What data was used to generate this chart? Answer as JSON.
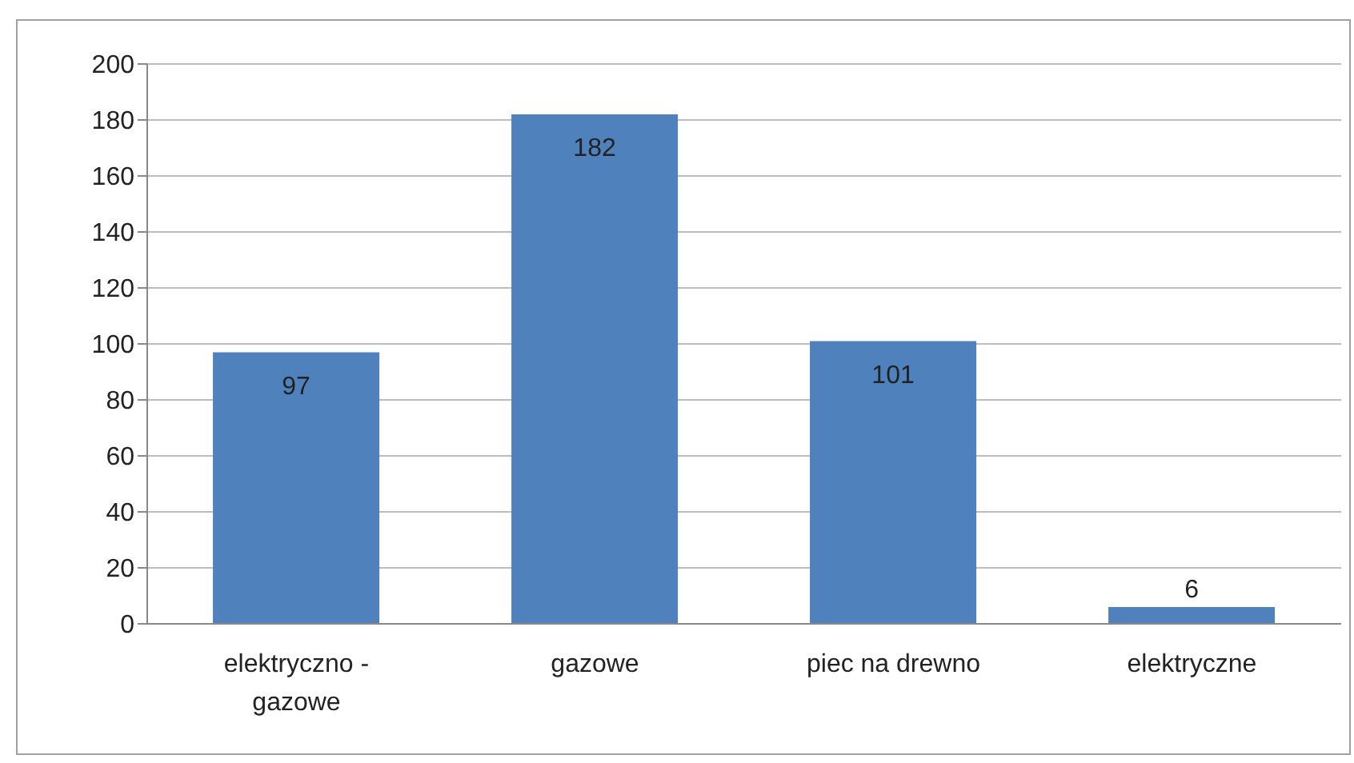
{
  "chart_data": {
    "type": "bar",
    "categories": [
      "elektryczno - gazowe",
      "gazowe",
      "piec na drewno",
      "elektryczne"
    ],
    "values": [
      97,
      182,
      101,
      6
    ],
    "color": "#4f81bd",
    "ylim": [
      0,
      200
    ],
    "yticks": [
      0,
      20,
      40,
      60,
      80,
      100,
      120,
      140,
      160,
      180,
      200
    ],
    "grid": "y",
    "data_labels": true
  }
}
